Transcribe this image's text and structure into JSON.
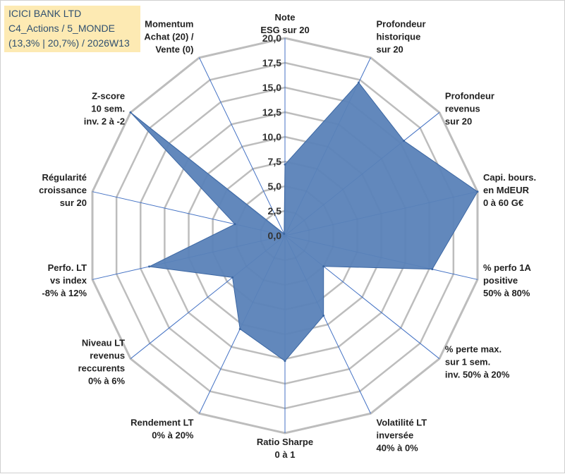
{
  "title_box": {
    "line1": "ICICI BANK LTD",
    "line2": "C4_Actions / 5_MONDE",
    "line3": "(13,3% | 20,7%) / 2026W13"
  },
  "chart_data": {
    "type": "radar",
    "rmin": 0,
    "rmax": 20,
    "ticks": [
      "0,0",
      "2,5",
      "5,0",
      "7,5",
      "10,0",
      "12,5",
      "15,0",
      "17,5",
      "20,0"
    ],
    "axes": [
      [
        "Note",
        "ESG sur 20"
      ],
      [
        "Profondeur",
        "historique",
        "sur 20"
      ],
      [
        "Profondeur",
        "revenus",
        "sur 20"
      ],
      [
        "Capi. bours.",
        "en MdEUR",
        "0 à 60 G€"
      ],
      [
        "% perfo 1A",
        "positive",
        "50% à 80%"
      ],
      [
        "% perte max.",
        "sur 1 sem.",
        "inv. 50% à 20%"
      ],
      [
        "Volatilité LT",
        "inversée",
        "40% à 0%"
      ],
      [
        "Ratio Sharpe",
        "0 à 1"
      ],
      [
        "Rendement LT",
        "0% à 20%"
      ],
      [
        "Niveau LT",
        "revenus",
        "reccurents",
        "0% à 6%"
      ],
      [
        "Perfo. LT",
        "vs index",
        "-8% à 12%"
      ],
      [
        "Régularité",
        "croissance",
        "sur 20"
      ],
      [
        "Z-score",
        "10 sem.",
        "inv. 2 à -2"
      ],
      [
        "Momentum",
        "Achat (20) /",
        "Vente (0)"
      ]
    ],
    "series": [
      {
        "name": "ICICI BANK LTD",
        "values": [
          7.2,
          17.2,
          15.4,
          20.0,
          15.3,
          5.0,
          9.0,
          12.7,
          10.5,
          6.8,
          14.1,
          5.2,
          20.0,
          0.2
        ]
      }
    ],
    "colors": {
      "fill": "#5a82b8",
      "stroke": "#3c67a3",
      "grid": "#bdbdbd",
      "spoke": "#4472c4"
    }
  }
}
